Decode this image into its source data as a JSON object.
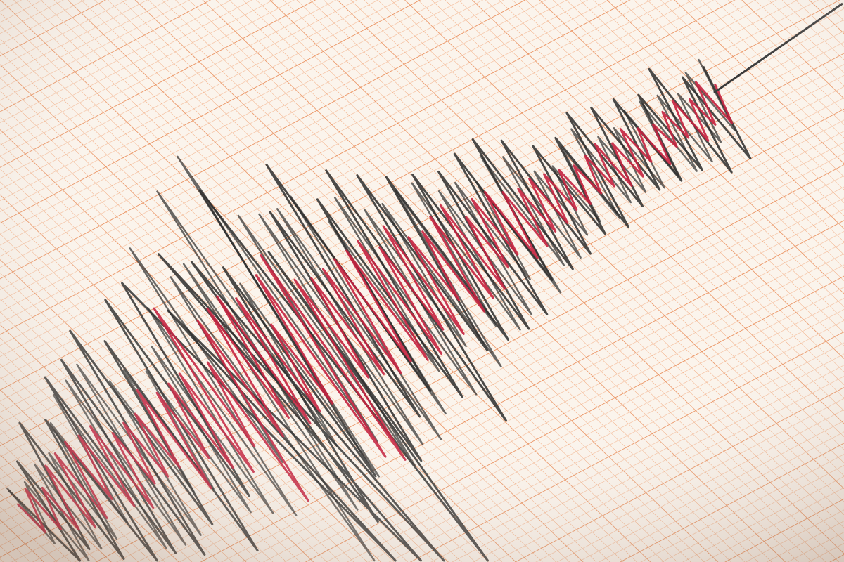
{
  "image": {
    "subject": "seismograph",
    "colors": {
      "paper": "#fbf4ec",
      "grid_minor": "#f2a77a",
      "grid_major": "#e98a55",
      "trace_black": "#2b2b2b",
      "trace_red": "#c4223f",
      "stylus": "#3a3a3a"
    }
  }
}
